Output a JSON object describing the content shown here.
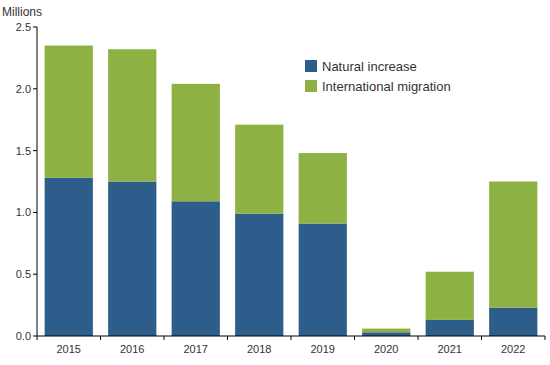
{
  "chart_data": {
    "type": "bar",
    "stacked": true,
    "y_label": "Millions",
    "categories": [
      "2015",
      "2016",
      "2017",
      "2018",
      "2019",
      "2020",
      "2021",
      "2022"
    ],
    "series": [
      {
        "name": "Natural increase",
        "color": "#2d5d8b",
        "values": [
          1.28,
          1.25,
          1.09,
          0.99,
          0.91,
          0.03,
          0.13,
          0.23
        ]
      },
      {
        "name": "International migration",
        "color": "#8db243",
        "values": [
          1.07,
          1.07,
          0.95,
          0.72,
          0.57,
          0.03,
          0.39,
          1.02
        ]
      }
    ],
    "ylim": [
      0,
      2.5
    ],
    "yticks": [
      {
        "value": 0,
        "label": "0.0"
      },
      0.5,
      {
        "value": 1,
        "label": "1.0"
      },
      1.5,
      {
        "value": 2,
        "label": "2.0"
      },
      2.5
    ],
    "grid": false,
    "legend": "top-right"
  }
}
